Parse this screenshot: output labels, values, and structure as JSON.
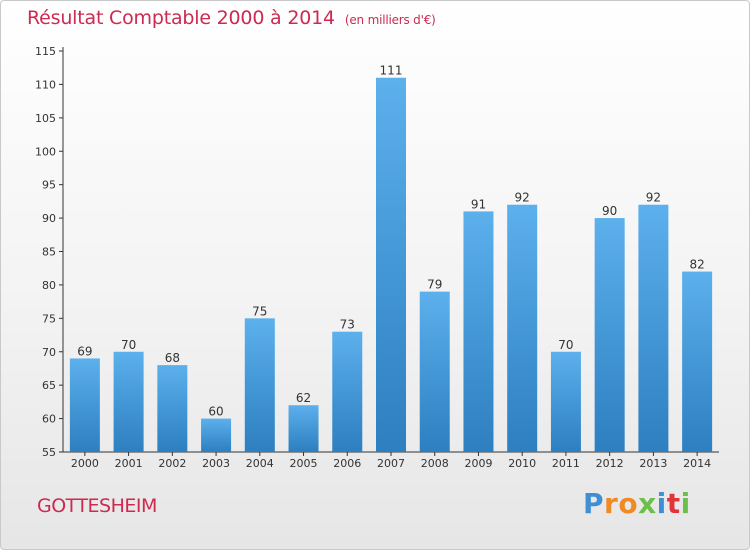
{
  "title": "Résultat Comptable 2000 à 2014",
  "unit": "(en milliers d'€)",
  "city": "GOTTESHEIM",
  "logo": {
    "text": "Proxiti"
  },
  "colors": {
    "bar": "#4a9fdf",
    "title": "#cc2a50",
    "axis": "#333333"
  },
  "chart_data": {
    "type": "bar",
    "title": "Résultat Comptable 2000 à 2014",
    "subtitle": "(en milliers d'€)",
    "xlabel": "",
    "ylabel": "",
    "categories": [
      "2000",
      "2001",
      "2002",
      "2003",
      "2004",
      "2005",
      "2006",
      "2007",
      "2008",
      "2009",
      "2010",
      "2011",
      "2012",
      "2013",
      "2014"
    ],
    "values": [
      69,
      70,
      68,
      60,
      75,
      62,
      73,
      111,
      79,
      91,
      92,
      70,
      90,
      92,
      82
    ],
    "ylim": [
      55,
      115
    ],
    "yticks": [
      55,
      60,
      65,
      70,
      75,
      80,
      85,
      90,
      95,
      100,
      105,
      110,
      115
    ],
    "grid": false,
    "legend": "none"
  }
}
